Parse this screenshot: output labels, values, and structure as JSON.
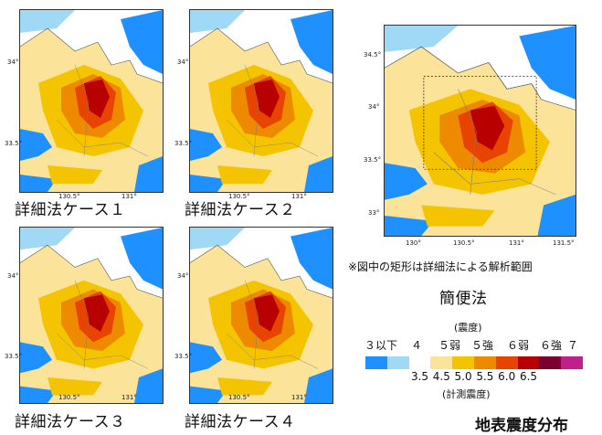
{
  "panels": [
    {
      "caption": "詳細法ケース１",
      "y_ticks": [
        "34°",
        "33.5°"
      ],
      "x_ticks": [
        "130.5°",
        "131°"
      ]
    },
    {
      "caption": "詳細法ケース２",
      "y_ticks": [
        "34°",
        "33.5°"
      ],
      "x_ticks": [
        "130.5°",
        "131°"
      ]
    },
    {
      "caption": "詳細法ケース３",
      "y_ticks": [
        "34°",
        "33.5°"
      ],
      "x_ticks": [
        "130.5°",
        "131°"
      ]
    },
    {
      "caption": "詳細法ケース４",
      "y_ticks": [
        "34°",
        "33.5°"
      ],
      "x_ticks": [
        "130.5°",
        "131°"
      ]
    }
  ],
  "simple_map": {
    "caption": "簡便法",
    "note": "※図中の矩形は詳細法による解析範囲",
    "y_ticks": [
      "34.5°",
      "34°",
      "33.5°",
      "33°"
    ],
    "x_ticks": [
      "130°",
      "130.5°",
      "131°",
      "131.5°"
    ]
  },
  "legend": {
    "class_title": "(震度)",
    "classes": [
      "３以下",
      "４",
      "５弱",
      "５強",
      "６弱",
      "６強",
      "７"
    ],
    "values": [
      "3.5",
      "4.5",
      "5.0",
      "5.5",
      "6.0",
      "6.5"
    ],
    "value_title": "(計測震度)",
    "colors": [
      "#1e90ff",
      "#9fd9f5",
      "#ffffff",
      "#fbe49a",
      "#f5c400",
      "#ee8a00",
      "#e64400",
      "#b80000",
      "#7a0030",
      "#c0208c"
    ]
  },
  "figure_title": "地表震度分布"
}
